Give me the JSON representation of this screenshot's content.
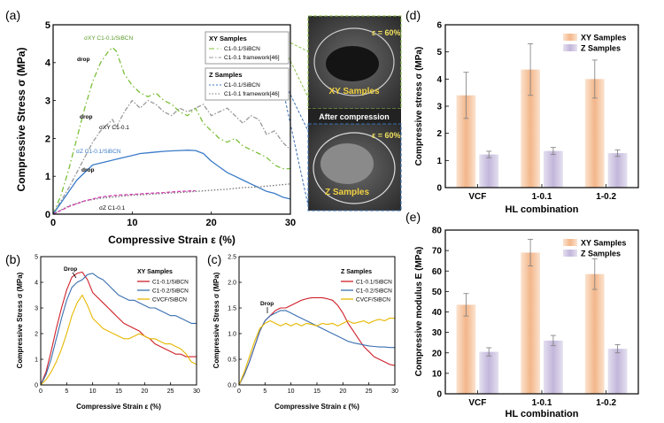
{
  "photos": {
    "top_caption": "XY Samples",
    "top_strain": "ε = 60%",
    "middle_caption": "After compression",
    "bottom_caption": "Z Samples",
    "bottom_strain": "ε = 60%"
  },
  "chart_data": [
    {
      "id": "a",
      "panel_label": "(a)",
      "type": "line",
      "xlabel": "Compressive Strain ε (%)",
      "ylabel": "Compressive Stress σ (MPa)",
      "xlim": [
        0,
        30
      ],
      "ylim": [
        0,
        5
      ],
      "xticks": [
        "0",
        "10",
        "20",
        "30"
      ],
      "yticks": [
        "0",
        "1",
        "2",
        "3",
        "4",
        "5"
      ],
      "legend_groups": [
        {
          "title": "XY Samples",
          "entries": [
            "C1-0.1/SiBCN",
            "C1-0.1 framework[46]"
          ]
        },
        {
          "title": "Z Samples",
          "entries": [
            "C1-0.1/SiBCN",
            "C1-0.1 framework[46]"
          ]
        }
      ],
      "annotations": [
        "drop",
        "drop",
        "drop",
        "σXY C1-0.1/SiBCN",
        "σXY C1-0.1",
        "σZ C1-0.1/SiBCN",
        "σZ C1-0.1"
      ],
      "series": [
        {
          "name": "XY C1-0.1/SiBCN",
          "color": "#7cbf3a",
          "dash": "6,3,1.5,3",
          "x": [
            0,
            1,
            2,
            3,
            4,
            5,
            6,
            7,
            7.5,
            8,
            9,
            10,
            11,
            12,
            13,
            14,
            15,
            16,
            17,
            18,
            19,
            20,
            21,
            22,
            23,
            24,
            25,
            26,
            27,
            28,
            29,
            30
          ],
          "y": [
            0,
            0.5,
            1.2,
            2.0,
            2.8,
            3.5,
            4.0,
            4.3,
            4.4,
            4.3,
            3.7,
            3.4,
            3.2,
            3.1,
            3.2,
            3.0,
            2.9,
            2.7,
            2.6,
            2.8,
            2.4,
            2.2,
            2.0,
            1.9,
            2.0,
            1.8,
            1.7,
            1.6,
            1.5,
            1.3,
            1.2,
            1.2
          ]
        },
        {
          "name": "XY C1-0.1 framework[46]",
          "color": "#999999",
          "dash": "5,2,1.5,2",
          "x": [
            0,
            1,
            2,
            3,
            4,
            5,
            6,
            7,
            7.5,
            8,
            9,
            10,
            11,
            12,
            13,
            14,
            15,
            16,
            17,
            18,
            19,
            20,
            21,
            22,
            23,
            24,
            25,
            26,
            27,
            28,
            29,
            30
          ],
          "y": [
            0,
            0.35,
            0.7,
            1.1,
            1.5,
            1.9,
            2.2,
            2.4,
            2.5,
            2.3,
            2.7,
            3.0,
            2.8,
            3.0,
            2.9,
            2.7,
            2.6,
            2.8,
            2.7,
            2.8,
            2.9,
            2.6,
            2.7,
            2.8,
            2.6,
            2.4,
            2.6,
            2.5,
            2.1,
            2.2,
            1.9,
            1.7
          ]
        },
        {
          "name": "Z C1-0.1/SiBCN",
          "color": "#3a7bc8",
          "dash": "",
          "x": [
            0,
            1,
            2,
            3,
            4,
            5,
            6,
            7,
            8,
            9,
            10,
            11,
            12,
            13,
            14,
            15,
            16,
            17,
            18,
            19,
            20,
            21,
            22,
            23,
            24,
            25,
            26,
            27,
            28,
            29,
            30
          ],
          "y": [
            0,
            0.3,
            0.6,
            0.9,
            1.1,
            1.3,
            1.35,
            1.4,
            1.45,
            1.5,
            1.55,
            1.6,
            1.62,
            1.64,
            1.66,
            1.67,
            1.68,
            1.69,
            1.68,
            1.6,
            1.4,
            1.25,
            1.1,
            1.0,
            0.9,
            0.8,
            0.7,
            0.6,
            0.55,
            0.45,
            0.4
          ]
        },
        {
          "name": "Z C1-0.1 framework[46]",
          "color": "#777777",
          "dash": "1.5,2",
          "x": [
            0,
            2,
            4,
            6,
            8,
            10,
            12,
            14,
            16,
            18,
            20,
            22,
            24,
            26,
            28,
            30
          ],
          "y": [
            0,
            0.22,
            0.35,
            0.42,
            0.46,
            0.5,
            0.52,
            0.55,
            0.57,
            0.6,
            0.63,
            0.66,
            0.7,
            0.72,
            0.76,
            0.8
          ]
        },
        {
          "name": "Z C1-0.1 (magenta)",
          "color": "#d040b0",
          "dash": "4,2",
          "x": [
            0,
            2,
            4,
            6,
            8,
            10,
            12,
            14,
            16,
            18
          ],
          "y": [
            0,
            0.2,
            0.35,
            0.45,
            0.5,
            0.52,
            0.55,
            0.57,
            0.6,
            0.62
          ]
        }
      ]
    },
    {
      "id": "b",
      "panel_label": "(b)",
      "type": "line",
      "xlabel": "Compressive Strain ε (%)",
      "ylabel": "Compressive Stress σ (MPa)",
      "xlim": [
        0,
        30
      ],
      "ylim": [
        0,
        5
      ],
      "xticks": [
        "0",
        "5",
        "10",
        "15",
        "20",
        "25",
        "30"
      ],
      "yticks": [
        "0",
        "1",
        "2",
        "3",
        "4",
        "5"
      ],
      "legend_title": "XY Samples",
      "annotation": "Drop",
      "series": [
        {
          "name": "C1-0.1/SiBCN",
          "color": "#d0202a",
          "x": [
            0,
            1,
            2,
            3,
            4,
            5,
            6,
            7,
            8,
            9,
            10,
            11,
            12,
            13,
            14,
            15,
            16,
            17,
            18,
            19,
            20,
            21,
            22,
            23,
            24,
            25,
            26,
            27,
            28,
            29,
            30
          ],
          "y": [
            0,
            0.5,
            1.3,
            2.2,
            3.0,
            3.7,
            4.2,
            4.35,
            4.4,
            4.1,
            3.6,
            3.4,
            3.2,
            3.0,
            2.8,
            2.6,
            2.4,
            2.3,
            2.2,
            2.1,
            1.9,
            1.8,
            1.6,
            1.5,
            1.4,
            1.3,
            1.2,
            1.2,
            1.1,
            1.1,
            1.1
          ]
        },
        {
          "name": "C1-0.2/SiBCN",
          "color": "#3a6fb0",
          "x": [
            0,
            1,
            2,
            3,
            4,
            5,
            6,
            7,
            8,
            9,
            10,
            11,
            12,
            13,
            14,
            15,
            16,
            17,
            18,
            19,
            20,
            21,
            22,
            23,
            24,
            25,
            26,
            27,
            28,
            29,
            30
          ],
          "y": [
            0,
            0.4,
            1.0,
            1.8,
            2.6,
            3.3,
            3.8,
            4.0,
            4.1,
            4.3,
            4.35,
            4.2,
            4.1,
            3.9,
            3.7,
            3.5,
            3.4,
            3.3,
            3.3,
            3.2,
            3.1,
            3.0,
            3.0,
            2.9,
            2.8,
            2.7,
            2.7,
            2.6,
            2.5,
            2.4,
            2.4
          ]
        },
        {
          "name": "CVCF/SiBCN",
          "color": "#e6b800",
          "x": [
            0,
            1,
            2,
            3,
            4,
            5,
            6,
            7,
            8,
            9,
            10,
            11,
            12,
            13,
            14,
            15,
            16,
            17,
            18,
            19,
            20,
            21,
            22,
            23,
            24,
            25,
            26,
            27,
            28,
            29,
            30
          ],
          "y": [
            0,
            0.2,
            0.5,
            0.9,
            1.4,
            2.0,
            2.7,
            3.2,
            3.5,
            3.1,
            2.6,
            2.4,
            2.2,
            2.1,
            2.0,
            1.9,
            1.8,
            1.8,
            1.9,
            2.0,
            1.9,
            1.8,
            1.8,
            1.7,
            1.6,
            1.6,
            1.5,
            1.4,
            1.2,
            0.9,
            0.8
          ]
        }
      ]
    },
    {
      "id": "c",
      "panel_label": "(c)",
      "type": "line",
      "xlabel": "Compressive Strain ε (%)",
      "ylabel": "Compressive Stress σ (MPa)",
      "xlim": [
        0,
        30
      ],
      "ylim": [
        0,
        2.5
      ],
      "xticks": [
        "0",
        "5",
        "10",
        "15",
        "20",
        "25",
        "30"
      ],
      "yticks": [
        "0.0",
        "0.5",
        "1.0",
        "1.5",
        "2.0",
        "2.5"
      ],
      "legend_title": "Z Samples",
      "annotation": "Drop",
      "series": [
        {
          "name": "C1-0.1/SiBCN",
          "color": "#d0202a",
          "x": [
            0,
            1,
            2,
            3,
            4,
            5,
            6,
            7,
            8,
            9,
            10,
            11,
            12,
            13,
            14,
            15,
            16,
            17,
            18,
            19,
            20,
            21,
            22,
            23,
            24,
            25,
            26,
            27,
            28,
            29,
            30
          ],
          "y": [
            0,
            0.2,
            0.45,
            0.75,
            1.05,
            1.25,
            1.35,
            1.45,
            1.5,
            1.5,
            1.55,
            1.6,
            1.65,
            1.68,
            1.7,
            1.7,
            1.7,
            1.68,
            1.65,
            1.55,
            1.4,
            1.2,
            1.05,
            0.9,
            0.75,
            0.65,
            0.55,
            0.5,
            0.45,
            0.4,
            0.38
          ]
        },
        {
          "name": "C1-0.2/SiBCN",
          "color": "#3a6fb0",
          "x": [
            0,
            1,
            2,
            3,
            4,
            5,
            6,
            7,
            8,
            9,
            10,
            11,
            12,
            13,
            14,
            15,
            16,
            17,
            18,
            19,
            20,
            21,
            22,
            23,
            24,
            25,
            26,
            27,
            28,
            29,
            30
          ],
          "y": [
            0,
            0.2,
            0.45,
            0.75,
            1.05,
            1.25,
            1.35,
            1.4,
            1.45,
            1.45,
            1.4,
            1.35,
            1.3,
            1.25,
            1.2,
            1.15,
            1.1,
            1.05,
            1.0,
            0.95,
            0.9,
            0.85,
            0.82,
            0.8,
            0.78,
            0.76,
            0.75,
            0.74,
            0.74,
            0.73,
            0.73
          ]
        },
        {
          "name": "CVCF/SiBCN",
          "color": "#e6b800",
          "x": [
            0,
            1,
            2,
            3,
            4,
            5,
            6,
            7,
            8,
            9,
            10,
            11,
            12,
            13,
            14,
            15,
            16,
            17,
            18,
            19,
            20,
            21,
            22,
            23,
            24,
            25,
            26,
            27,
            28,
            29,
            30
          ],
          "y": [
            0,
            0.25,
            0.55,
            0.85,
            1.1,
            1.2,
            1.25,
            1.2,
            1.15,
            1.2,
            1.15,
            1.2,
            1.15,
            1.2,
            1.18,
            1.15,
            1.2,
            1.18,
            1.2,
            1.15,
            1.2,
            1.25,
            1.2,
            1.22,
            1.25,
            1.2,
            1.25,
            1.28,
            1.25,
            1.3,
            1.3
          ]
        }
      ]
    },
    {
      "id": "d",
      "panel_label": "(d)",
      "type": "bar",
      "title": "",
      "xlabel": "HL combination",
      "ylabel": "Compressive stress σ (MPa)",
      "ylim": [
        0,
        6
      ],
      "yticks": [
        "0",
        "1",
        "2",
        "3",
        "4",
        "5",
        "6"
      ],
      "categories": [
        "VCF",
        "1-0.1",
        "1-0.2"
      ],
      "series": [
        {
          "name": "XY Samples",
          "color": "#f5b98a",
          "values": [
            3.4,
            4.35,
            4.0
          ],
          "errors": [
            0.85,
            0.95,
            0.7
          ]
        },
        {
          "name": "Z Samples",
          "color": "#c4b8dc",
          "values": [
            1.22,
            1.35,
            1.27
          ],
          "errors": [
            0.12,
            0.13,
            0.12
          ]
        }
      ]
    },
    {
      "id": "e",
      "panel_label": "(e)",
      "type": "bar",
      "title": "",
      "xlabel": "HL combination",
      "ylabel": "Compressive modulus E (MPa)",
      "ylim": [
        0,
        80
      ],
      "yticks": [
        "0",
        "10",
        "20",
        "30",
        "40",
        "50",
        "60",
        "70",
        "80"
      ],
      "categories": [
        "VCF",
        "1-0.1",
        "1-0.2"
      ],
      "series": [
        {
          "name": "XY Samples",
          "color": "#f5b98a",
          "values": [
            43.5,
            69,
            58.5
          ],
          "errors": [
            5.5,
            6.5,
            7.5
          ]
        },
        {
          "name": "Z Samples",
          "color": "#c4b8dc",
          "values": [
            20.5,
            26,
            22
          ],
          "errors": [
            2.0,
            2.5,
            2.0
          ]
        }
      ]
    }
  ]
}
